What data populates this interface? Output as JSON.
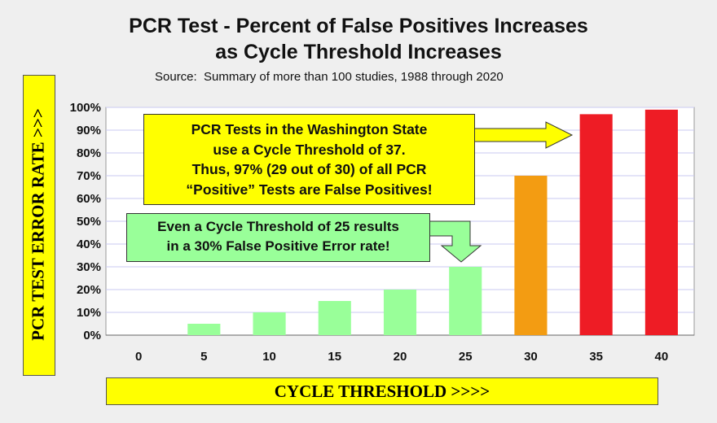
{
  "chart_data": {
    "type": "bar",
    "title": "PCR Test - Percent of False Positives Increases",
    "title_line2": "as Cycle Threshold Increases",
    "subtitle": "Source:  Summary of more than 100 studies, 1988 through 2020",
    "xlabel": "CYCLE THRESHOLD >>>>",
    "ylabel": "PCR TEST ERROR RATE >>>",
    "categories": [
      "0",
      "5",
      "10",
      "15",
      "20",
      "25",
      "30",
      "35",
      "40"
    ],
    "values": [
      0,
      5,
      10,
      15,
      20,
      30,
      70,
      97,
      99
    ],
    "bar_colors": [
      "#99ff99",
      "#99ff99",
      "#99ff99",
      "#99ff99",
      "#99ff99",
      "#99ff99",
      "#f39c12",
      "#ee1c25",
      "#ee1c25"
    ],
    "y_ticks": [
      "0%",
      "10%",
      "20%",
      "30%",
      "40%",
      "50%",
      "60%",
      "70%",
      "80%",
      "90%",
      "100%"
    ],
    "ylim": [
      0,
      100
    ],
    "grid": true,
    "legend": "none",
    "plot_background": "#ffffff",
    "grid_color": "#c8c8f0",
    "annotations": [
      {
        "id": "washington",
        "lines": [
          "PCR Tests in the Washington State",
          "use a Cycle Threshold of 37.",
          "Thus, 97% (29 out of 30) of all PCR",
          "“Positive” Tests are False Positives!"
        ],
        "background": "#ffff00"
      },
      {
        "id": "threshold25",
        "lines": [
          "Even a Cycle Threshold of 25 results",
          "in a 30% False Positive Error rate!"
        ],
        "background": "#99ff99"
      }
    ]
  }
}
